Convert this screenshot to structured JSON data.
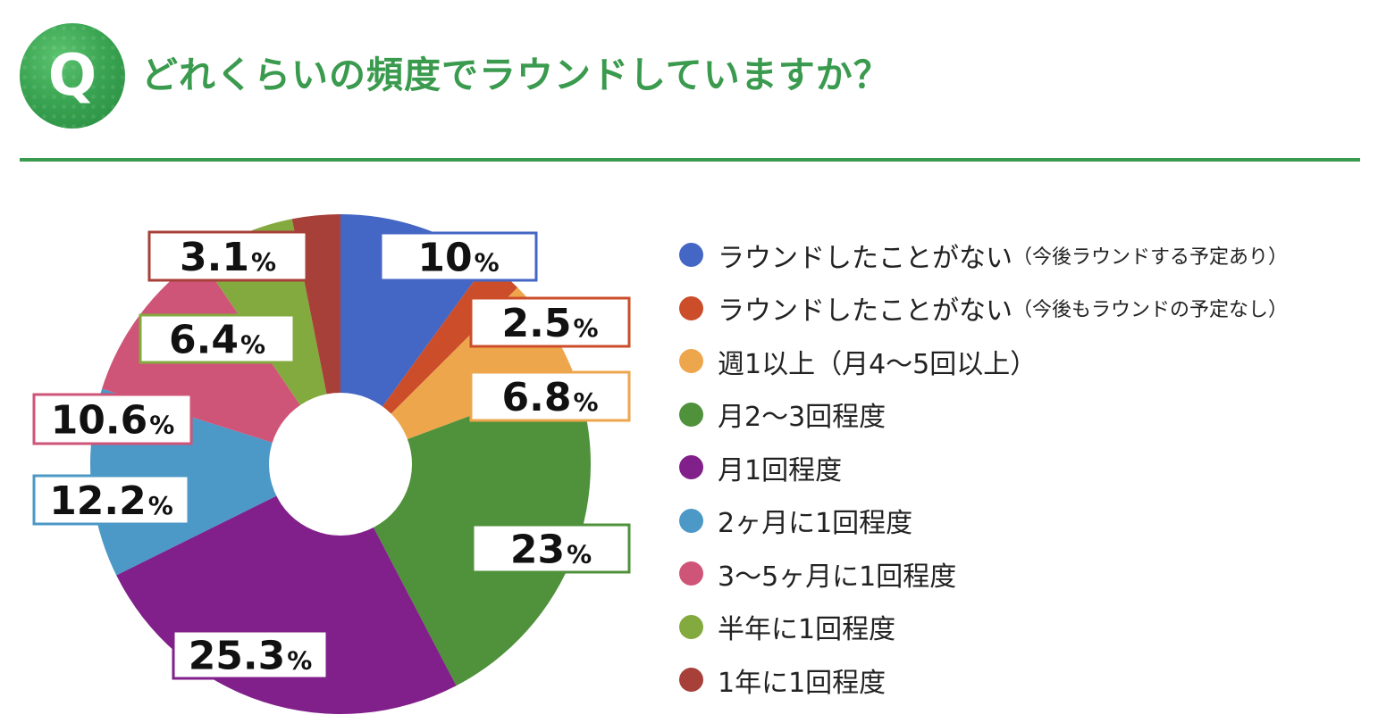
{
  "header": {
    "badge_letter": "Q",
    "title": "どれくらいの頻度でラウンドしていますか？"
  },
  "chart_data": {
    "type": "pie",
    "donut": true,
    "title": "どれくらいの頻度でラウンドしていますか？",
    "unit": "%",
    "legend_position": "right",
    "slices": [
      {
        "label": "ラウンドしたことがない",
        "note": "（今後ラウンドする予定あり）",
        "value": 10,
        "value_text": "10",
        "color": "#4466c4"
      },
      {
        "label": "ラウンドしたことがない",
        "note": "（今後もラウンドの予定なし）",
        "value": 2.5,
        "value_text": "2.5",
        "color": "#cc4d2a"
      },
      {
        "label": "週1以上（月4〜5回以上）",
        "note": "",
        "value": 6.8,
        "value_text": "6.8",
        "color": "#eea64d"
      },
      {
        "label": "月2〜3回程度",
        "note": "",
        "value": 23,
        "value_text": "23",
        "color": "#4f923b"
      },
      {
        "label": "月1回程度",
        "note": "",
        "value": 25.3,
        "value_text": "25.3",
        "color": "#81208b"
      },
      {
        "label": "2ヶ月に1回程度",
        "note": "",
        "value": 12.2,
        "value_text": "12.2",
        "color": "#4c98c6"
      },
      {
        "label": "3〜5ヶ月に1回程度",
        "note": "",
        "value": 10.6,
        "value_text": "10.6",
        "color": "#cf5578"
      },
      {
        "label": "半年に1回程度",
        "note": "",
        "value": 6.4,
        "value_text": "6.4",
        "color": "#83aa3e"
      },
      {
        "label": "1年に1回程度",
        "note": "",
        "value": 3.1,
        "value_text": "3.1",
        "color": "#a8403a"
      }
    ]
  }
}
